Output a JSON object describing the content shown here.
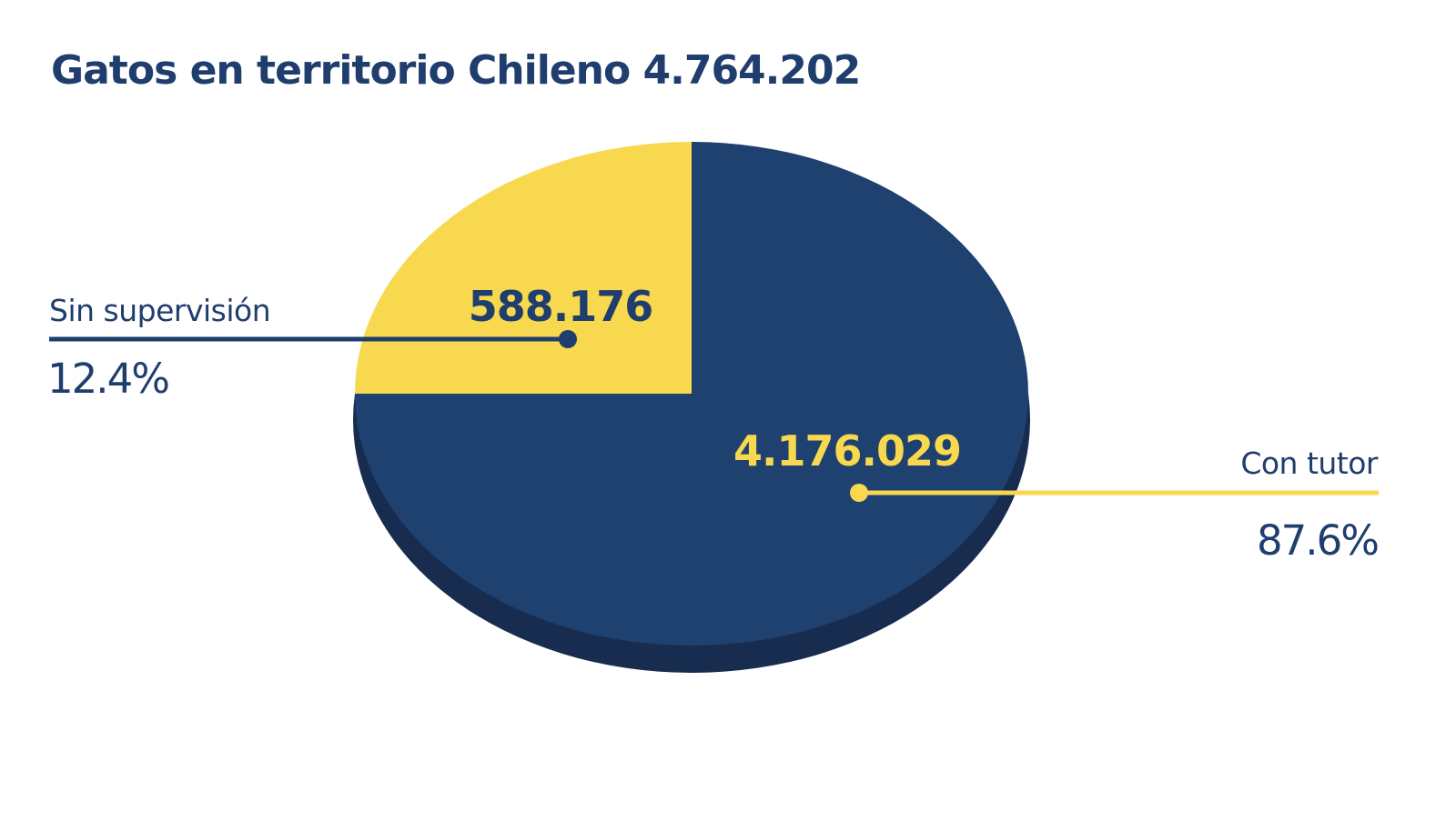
{
  "chart_data": {
    "type": "pie",
    "title": "Gatos en territorio Chileno 4.764.202",
    "slices": [
      {
        "label": "Sin supervisión",
        "value": 588176,
        "value_label": "588.176",
        "percent": "12.4%",
        "color": "#f7d84e",
        "text_color": "#1f3e6e"
      },
      {
        "label": "Con tutor",
        "value": 4176029,
        "value_label": "4.176.029",
        "percent": "87.6%",
        "color": "#1f4170",
        "text_color": "#f7d84e"
      }
    ]
  },
  "colors": {
    "title": "#1f3e6e",
    "depth": "#182c4f",
    "yellow": "#f7d84e",
    "navy": "#1f4170"
  }
}
